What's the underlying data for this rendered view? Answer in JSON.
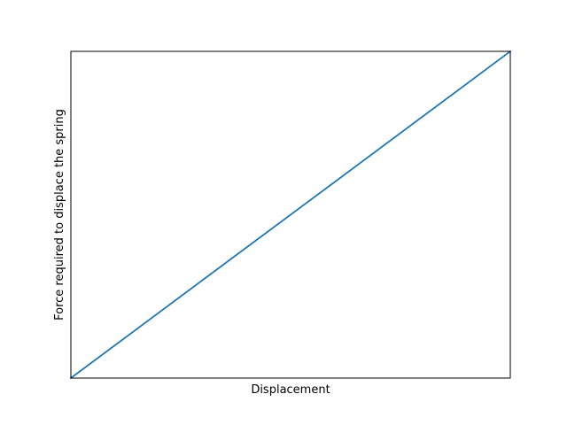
{
  "chart_data": {
    "type": "line",
    "title": "",
    "xlabel": "Displacement",
    "ylabel": "Force required to displace the spring",
    "x_ticks_visible": false,
    "y_ticks_visible": false,
    "grid": false,
    "xlim": [
      0,
      1
    ],
    "ylim": [
      0,
      1
    ],
    "series": [
      {
        "x": [
          0,
          1
        ],
        "y": [
          0,
          1
        ],
        "color": "#1f77b4"
      }
    ]
  }
}
